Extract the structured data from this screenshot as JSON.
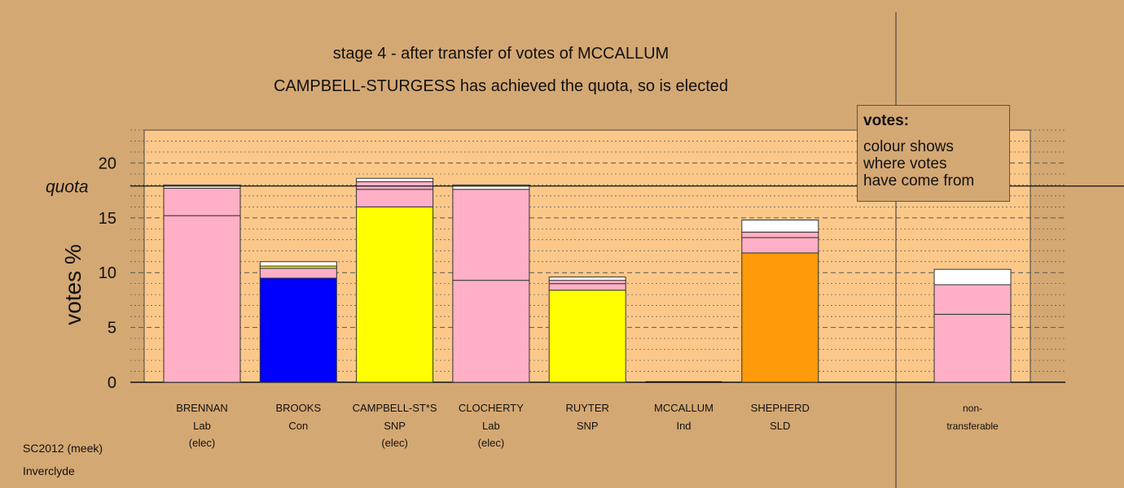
{
  "titles": {
    "line1": "stage 4 - after transfer of votes of MCCALLUM",
    "line2": "CAMPBELL-STURGESS has achieved the quota, so is elected"
  },
  "legend": {
    "title": "votes:",
    "text": "colour shows\nwhere votes\nhave come from"
  },
  "footer": {
    "line1": "SC2012 (meek)",
    "line2": "Inverclyde"
  },
  "colors": {
    "background": "#d4a873",
    "panel": "#fcc88a",
    "Lab": "#ffb0c6",
    "Con": "#0000ff",
    "SNP": "#ffff00",
    "SLD": "#ff9a0a",
    "other": "#ffffff"
  },
  "chart_data": {
    "type": "bar",
    "stacked": true,
    "ylabel": "votes %",
    "ylim": [
      0,
      23
    ],
    "yticks": [
      0,
      5,
      10,
      15,
      20
    ],
    "quota": {
      "label": "quota",
      "value": 17.9
    },
    "grid": "dashed major, dotted minor",
    "candidates": [
      {
        "name": "BRENNAN",
        "party": "Lab",
        "status": "(elec)",
        "segments": [
          {
            "value": 15.2,
            "color": "Lab"
          },
          {
            "value": 2.5,
            "color": "Lab"
          },
          {
            "value": 0.3,
            "color": "other"
          }
        ]
      },
      {
        "name": "BROOKS",
        "party": "Con",
        "status": "",
        "segments": [
          {
            "value": 9.5,
            "color": "Con"
          },
          {
            "value": 0.9,
            "color": "Lab"
          },
          {
            "value": 0.2,
            "color": "SNP"
          },
          {
            "value": 0.4,
            "color": "other"
          }
        ]
      },
      {
        "name": "CAMPBELL-ST*S",
        "party": "SNP",
        "status": "(elec)",
        "segments": [
          {
            "value": 16.0,
            "color": "SNP"
          },
          {
            "value": 1.6,
            "color": "Lab"
          },
          {
            "value": 0.7,
            "color": "Lab"
          },
          {
            "value": 0.3,
            "color": "other"
          }
        ]
      },
      {
        "name": "CLOCHERTY",
        "party": "Lab",
        "status": "(elec)",
        "segments": [
          {
            "value": 9.3,
            "color": "Lab"
          },
          {
            "value": 8.3,
            "color": "Lab"
          },
          {
            "value": 0.4,
            "color": "other"
          }
        ]
      },
      {
        "name": "RUYTER",
        "party": "SNP",
        "status": "",
        "segments": [
          {
            "value": 8.4,
            "color": "SNP"
          },
          {
            "value": 0.6,
            "color": "Lab"
          },
          {
            "value": 0.3,
            "color": "Lab"
          },
          {
            "value": 0.3,
            "color": "other"
          }
        ]
      },
      {
        "name": "MCCALLUM",
        "party": "Ind",
        "status": "",
        "segments": []
      },
      {
        "name": "SHEPHERD",
        "party": "SLD",
        "status": "",
        "segments": [
          {
            "value": 11.8,
            "color": "SLD"
          },
          {
            "value": 1.4,
            "color": "Lab"
          },
          {
            "value": 0.5,
            "color": "Lab"
          },
          {
            "value": 1.1,
            "color": "other"
          }
        ]
      }
    ],
    "nontransferable": {
      "label1": "non-",
      "label2": "transferable",
      "segments": [
        {
          "value": 6.2,
          "color": "Lab"
        },
        {
          "value": 2.7,
          "color": "Lab"
        },
        {
          "value": 1.4,
          "color": "other"
        }
      ]
    }
  }
}
